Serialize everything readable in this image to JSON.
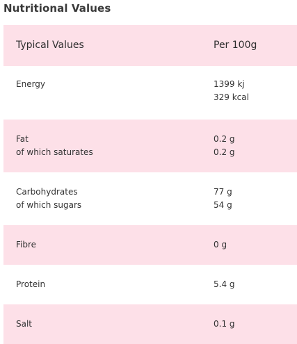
{
  "title": "Nutritional Values",
  "header": {
    "name": "Typical Values",
    "value": "Per 100g"
  },
  "rows": {
    "energy": {
      "name": "Energy",
      "values": [
        "1399 kj",
        "329 kcal"
      ]
    },
    "fat": {
      "names": [
        "Fat",
        "of which saturates"
      ],
      "values": [
        "0.2 g",
        "0.2 g"
      ]
    },
    "carbohydrates": {
      "names": [
        "Carbohydrates",
        "of which sugars"
      ],
      "values": [
        "77 g",
        "54 g"
      ]
    },
    "fibre": {
      "name": "Fibre",
      "value": "0 g"
    },
    "protein": {
      "name": "Protein",
      "value": "5.4 g"
    },
    "salt": {
      "name": "Salt",
      "value": "0.1 g"
    }
  },
  "colors": {
    "row_highlight": "#fde0e8",
    "row_plain": "#ffffff",
    "text": "#333333"
  }
}
